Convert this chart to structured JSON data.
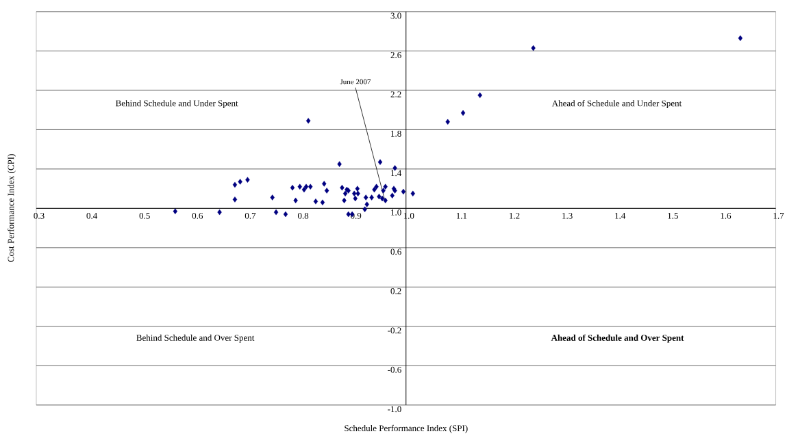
{
  "chart_data": {
    "type": "scatter",
    "xlabel": "Schedule Performance Index (SPI)",
    "ylabel": "Cost Performance Index (CPI)",
    "x": [
      0.563,
      0.647,
      0.676,
      0.676,
      0.686,
      0.7,
      0.747,
      0.754,
      0.772,
      0.785,
      0.791,
      0.799,
      0.807,
      0.811,
      0.815,
      0.819,
      0.829,
      0.842,
      0.845,
      0.85,
      0.874,
      0.879,
      0.883,
      0.888,
      0.891,
      0.885,
      0.891,
      0.898,
      0.904,
      0.902,
      0.908,
      0.909,
      0.922,
      0.926,
      0.924,
      0.935,
      0.94,
      0.944,
      0.951,
      0.949,
      0.955,
      0.961,
      0.961,
      0.957,
      0.977,
      0.979,
      0.974,
      0.979,
      0.995,
      1.013,
      1.079,
      1.108,
      1.14,
      1.241,
      1.633
    ],
    "series": [
      {
        "color": "#000080",
        "values": [
          0.97,
          0.96,
          1.24,
          1.09,
          1.27,
          1.29,
          1.11,
          0.96,
          0.94,
          1.21,
          1.08,
          1.22,
          1.19,
          1.22,
          1.89,
          1.22,
          1.07,
          1.06,
          1.25,
          1.18,
          1.45,
          1.21,
          1.08,
          1.19,
          1.18,
          1.15,
          0.94,
          0.94,
          1.1,
          1.15,
          1.2,
          1.15,
          0.99,
          1.04,
          1.11,
          1.11,
          1.19,
          1.22,
          1.47,
          1.12,
          1.1,
          1.08,
          1.22,
          1.18,
          1.2,
          1.18,
          1.13,
          1.41,
          1.17,
          1.15,
          1.88,
          1.97,
          2.15,
          2.63,
          2.73
        ]
      }
    ],
    "marker": "diamond",
    "xlim": [
      0.3,
      1.7
    ],
    "ylim": [
      -1.0,
      3.0
    ],
    "xticks": [
      0.3,
      0.4,
      0.5,
      0.6,
      0.7,
      0.8,
      0.9,
      {
        "value": 1.0,
        "label": "1.0"
      },
      1.1,
      1.2,
      1.3,
      1.4,
      1.5,
      1.6,
      1.7
    ],
    "yticks": [
      {
        "value": -1.0,
        "label": "-1.0"
      },
      -0.6,
      -0.2,
      0.2,
      0.6,
      {
        "value": 1.0,
        "label": "1.0"
      },
      1.4,
      1.8,
      2.2,
      2.6,
      {
        "value": 3.0,
        "label": "3.0"
      }
    ],
    "grid": "y",
    "annotations": [
      "Behind Schedule and Under Spent",
      "Ahead of Schedule and Under Spent",
      "Behind Schedule and Over Spent",
      "Ahead of Schedule and Over Spent",
      {
        "text": "June 2007",
        "x": 0.96,
        "y": 1.08
      }
    ]
  }
}
